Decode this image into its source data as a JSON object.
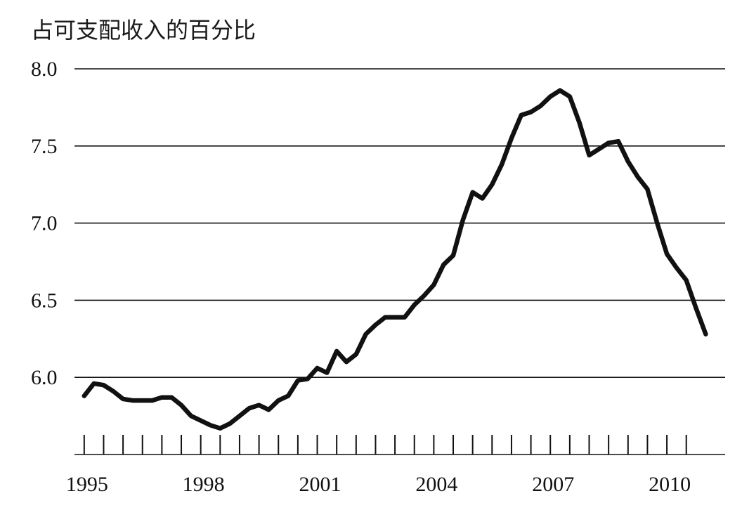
{
  "chart_data": {
    "type": "line",
    "title": "",
    "ylabel": "占可支配收入的百分比",
    "xlabel": "",
    "ylim": [
      5.5,
      8.0
    ],
    "xlim": [
      1994.75,
      2011.5
    ],
    "grid": true,
    "y_ticks": [
      "8.0",
      "7.5",
      "7.0",
      "6.5",
      "6.0"
    ],
    "y_tick_values": [
      8.0,
      7.5,
      7.0,
      6.5,
      6.0
    ],
    "x_tick_labels": [
      "1995",
      "1998",
      "2001",
      "2004",
      "2007",
      "2010"
    ],
    "x_tick_label_values": [
      1995,
      1998,
      2001,
      2004,
      2007,
      2010
    ],
    "x_minor_ticks": [
      1995,
      1995.5,
      1996,
      1996.5,
      1997,
      1997.5,
      1998,
      1998.5,
      1999,
      1999.5,
      2000,
      2000.5,
      2001,
      2001.5,
      2002,
      2002.5,
      2003,
      2003.5,
      2004,
      2004.5,
      2005,
      2005.5,
      2006,
      2006.5,
      2007,
      2007.5,
      2008,
      2008.5,
      2009,
      2009.5,
      2010,
      2010.5
    ],
    "series": [
      {
        "x": [
          1995.0,
          1995.25,
          1995.5,
          1995.75,
          1996.0,
          1996.25,
          1996.5,
          1996.75,
          1997.0,
          1997.25,
          1997.5,
          1997.75,
          1998.0,
          1998.25,
          1998.5,
          1998.75,
          1999.0,
          1999.25,
          1999.5,
          1999.75,
          2000.0,
          2000.25,
          2000.5,
          2000.75,
          2001.0,
          2001.25,
          2001.5,
          2001.75,
          2002.0,
          2002.25,
          2002.5,
          2002.75,
          2003.0,
          2003.25,
          2003.5,
          2003.75,
          2004.0,
          2004.25,
          2004.5,
          2004.75,
          2005.0,
          2005.25,
          2005.5,
          2005.75,
          2006.0,
          2006.25,
          2006.5,
          2006.75,
          2007.0,
          2007.25,
          2007.5,
          2007.75,
          2008.0,
          2008.25,
          2008.5,
          2008.75,
          2009.0,
          2009.25,
          2009.5,
          2009.75,
          2010.0,
          2010.25,
          2010.5,
          2010.75,
          2011.0
        ],
        "y": [
          5.88,
          5.96,
          5.95,
          5.91,
          5.86,
          5.85,
          5.85,
          5.85,
          5.87,
          5.87,
          5.82,
          5.75,
          5.72,
          5.69,
          5.67,
          5.7,
          5.75,
          5.8,
          5.82,
          5.79,
          5.85,
          5.88,
          5.98,
          5.99,
          6.06,
          6.03,
          6.17,
          6.1,
          6.15,
          6.28,
          6.34,
          6.39,
          6.39,
          6.39,
          6.47,
          6.53,
          6.6,
          6.73,
          6.79,
          7.02,
          7.2,
          7.16,
          7.25,
          7.38,
          7.55,
          7.7,
          7.72,
          7.76,
          7.82,
          7.86,
          7.82,
          7.65,
          7.44,
          7.48,
          7.52,
          7.53,
          7.4,
          7.3,
          7.22,
          7.0,
          6.8,
          6.71,
          6.63,
          6.45,
          6.28
        ]
      }
    ]
  }
}
